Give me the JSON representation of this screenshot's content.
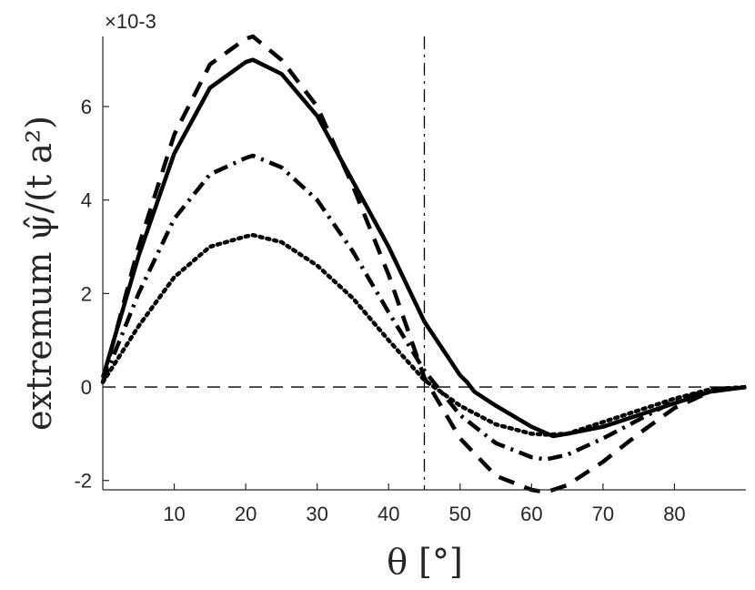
{
  "chart_data": {
    "type": "line",
    "xlabel": "θ [°]",
    "ylabel": "extremum ψ̂/(t a²)",
    "y_multiplier": "×10-3",
    "xlim": [
      0,
      90
    ],
    "ylim": [
      -2.2,
      7.5
    ],
    "x_ticks": [
      10,
      20,
      30,
      40,
      50,
      60,
      70,
      80
    ],
    "y_ticks": [
      -2,
      0,
      2,
      4,
      6
    ],
    "grid": false,
    "reference_lines": [
      {
        "orientation": "horizontal",
        "value": 0,
        "style": "dashed"
      },
      {
        "orientation": "vertical",
        "value": 45,
        "style": "dashdot"
      }
    ],
    "series": [
      {
        "style": "solid",
        "x": [
          0,
          5,
          10,
          15,
          20,
          21,
          25,
          30,
          35,
          40,
          45,
          50,
          51,
          52,
          55,
          60,
          63,
          65,
          70,
          75,
          80,
          85,
          90
        ],
        "y": [
          0.2,
          2.8,
          5.0,
          6.4,
          6.95,
          7.0,
          6.7,
          5.8,
          4.4,
          3.0,
          1.4,
          0.25,
          0.1,
          -0.1,
          -0.4,
          -0.85,
          -1.05,
          -1.0,
          -0.85,
          -0.6,
          -0.35,
          -0.1,
          0
        ]
      },
      {
        "style": "dashed",
        "x": [
          0,
          5,
          10,
          15,
          20,
          21,
          25,
          30,
          35,
          40,
          45,
          50,
          55,
          60,
          62,
          65,
          70,
          75,
          80,
          85,
          90
        ],
        "y": [
          0.1,
          3.0,
          5.4,
          6.9,
          7.45,
          7.5,
          7.0,
          6.0,
          4.3,
          2.4,
          0.2,
          -1.1,
          -1.9,
          -2.2,
          -2.25,
          -2.1,
          -1.6,
          -1.0,
          -0.45,
          -0.1,
          0
        ]
      },
      {
        "style": "dashdot",
        "x": [
          0,
          5,
          10,
          15,
          20,
          21,
          25,
          30,
          35,
          40,
          45,
          50,
          55,
          60,
          62,
          65,
          70,
          75,
          80,
          85,
          90
        ],
        "y": [
          0.1,
          2.0,
          3.6,
          4.55,
          4.9,
          4.95,
          4.7,
          4.0,
          2.9,
          1.6,
          0.35,
          -0.6,
          -1.2,
          -1.5,
          -1.55,
          -1.45,
          -1.1,
          -0.7,
          -0.3,
          -0.05,
          0
        ]
      },
      {
        "style": "dotted",
        "x": [
          0,
          5,
          10,
          15,
          20,
          21,
          25,
          30,
          35,
          40,
          45,
          50,
          55,
          60,
          62,
          65,
          70,
          75,
          80,
          85,
          90
        ],
        "y": [
          0.1,
          1.3,
          2.35,
          3.0,
          3.22,
          3.25,
          3.1,
          2.6,
          1.9,
          1.0,
          0.15,
          -0.4,
          -0.8,
          -1.0,
          -1.02,
          -1.0,
          -0.75,
          -0.5,
          -0.25,
          -0.05,
          0
        ]
      }
    ]
  }
}
